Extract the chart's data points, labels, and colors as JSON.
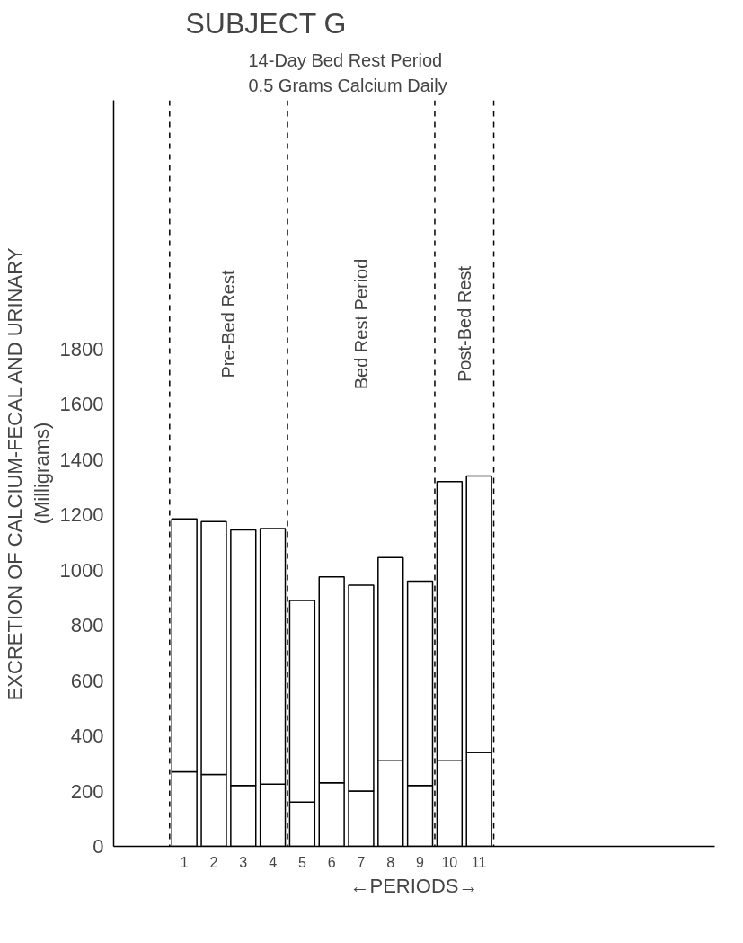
{
  "chart_data": {
    "type": "bar",
    "stacked": true,
    "title": "SUBJECT G",
    "subtitle": "14-Day Bed Rest Period\n0.5 Grams Calcium Daily",
    "xlabel": "←PERIODS→",
    "ylabel": "EXCRETION OF CALCIUM-FECAL AND URINARY\n(Milligrams)",
    "categories": [
      "1",
      "2",
      "3",
      "4",
      "5",
      "6",
      "7",
      "8",
      "9",
      "10",
      "11"
    ],
    "series": [
      {
        "color": "#ffffff",
        "values": [
          270,
          260,
          220,
          225,
          160,
          230,
          200,
          310,
          220,
          310,
          340
        ]
      },
      {
        "color": "#ffffff",
        "values": [
          915,
          915,
          925,
          925,
          730,
          745,
          745,
          735,
          740,
          1010,
          1000
        ]
      }
    ],
    "ylim": [
      0,
      2700
    ],
    "yticks": [
      0,
      200,
      400,
      600,
      800,
      1000,
      1200,
      1400,
      1600,
      1800
    ],
    "grid": false,
    "annotations": [
      "Pre-Bed Rest",
      "Bed Rest Period",
      "Post-Bed Rest"
    ]
  }
}
